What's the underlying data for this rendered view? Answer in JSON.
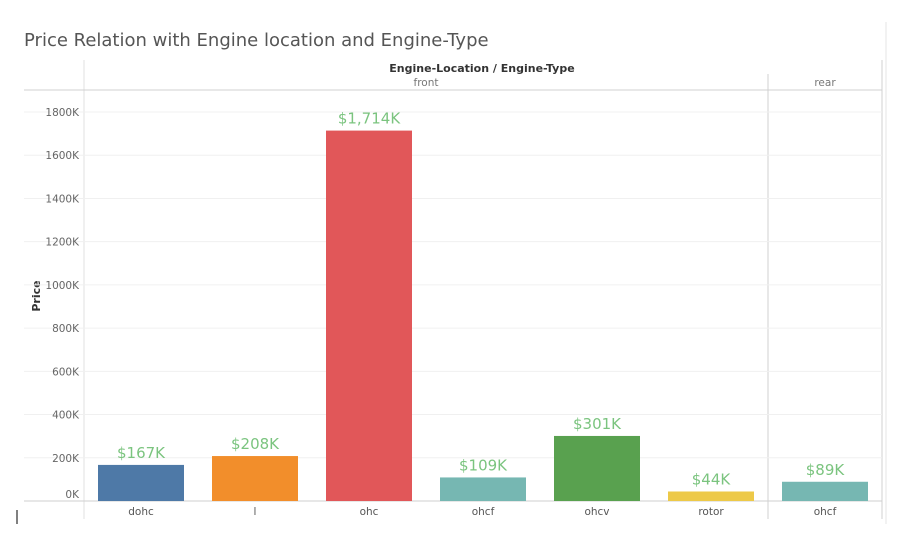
{
  "chart_data": {
    "type": "bar",
    "title": "Price Relation with Engine location and Engine-Type",
    "header_label": "Engine-Location / Engine-Type",
    "ylabel": "Price",
    "ylim": [
      0,
      1850
    ],
    "y_ticks": [
      {
        "value": 0,
        "label": "0K"
      },
      {
        "value": 200,
        "label": "200K"
      },
      {
        "value": 400,
        "label": "400K"
      },
      {
        "value": 600,
        "label": "600K"
      },
      {
        "value": 800,
        "label": "800K"
      },
      {
        "value": 1000,
        "label": "1000K"
      },
      {
        "value": 1200,
        "label": "1200K"
      },
      {
        "value": 1400,
        "label": "1400K"
      },
      {
        "value": 1600,
        "label": "1600K"
      },
      {
        "value": 1800,
        "label": "1800K"
      }
    ],
    "groups": [
      {
        "name": "front",
        "bars": [
          {
            "category": "dohc",
            "value": 167,
            "label": "$167K",
            "color": "#4e79a7"
          },
          {
            "category": "l",
            "value": 208,
            "label": "$208K",
            "color": "#f28e2b"
          },
          {
            "category": "ohc",
            "value": 1714,
            "label": "$1,714K",
            "color": "#e15759"
          },
          {
            "category": "ohcf",
            "value": 109,
            "label": "$109K",
            "color": "#76b7b2"
          },
          {
            "category": "ohcv",
            "value": 301,
            "label": "$301K",
            "color": "#59a14f"
          },
          {
            "category": "rotor",
            "value": 44,
            "label": "$44K",
            "color": "#edc948"
          }
        ]
      },
      {
        "name": "rear",
        "bars": [
          {
            "category": "ohcf",
            "value": 89,
            "label": "$89K",
            "color": "#76b7b2"
          }
        ]
      }
    ],
    "label_color": "#7bc47f",
    "grid": true
  }
}
